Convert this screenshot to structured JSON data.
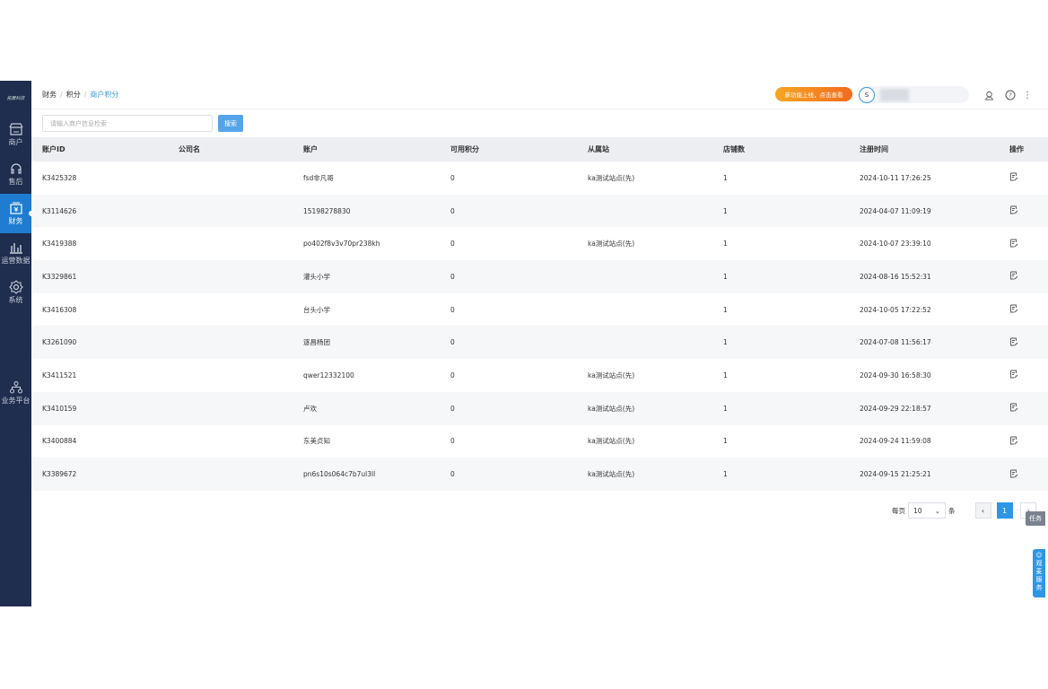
{
  "logo_text": "拓展科技",
  "sidebar": {
    "items": [
      {
        "label": "商户",
        "icon": "store-icon"
      },
      {
        "label": "售后",
        "icon": "headset-icon"
      },
      {
        "label": "财务",
        "icon": "finance-icon",
        "active": true
      },
      {
        "label": "运营数据",
        "icon": "bar-chart-icon"
      },
      {
        "label": "系统",
        "icon": "gear-icon"
      },
      {
        "label": "业务平台",
        "icon": "sitemap-icon"
      }
    ]
  },
  "breadcrumb": [
    "财务",
    "积分",
    "商户积分"
  ],
  "header": {
    "promo": "新功能上线，点击查看",
    "avatar_letter": "S"
  },
  "search": {
    "placeholder": "请输入商户信息检索",
    "value": "",
    "button": "搜索"
  },
  "table": {
    "columns": [
      "账户ID",
      "公司名",
      "账户",
      "可用积分",
      "从属站",
      "店铺数",
      "注册时间",
      "操作"
    ],
    "rows": [
      [
        "K3425328",
        "",
        "fsd非凡哥",
        "0",
        "ka测试站点(先)",
        "1",
        "2024-10-11 17:26:25"
      ],
      [
        "K3114626",
        "",
        "15198278830",
        "0",
        "",
        "1",
        "2024-04-07 11:09:19"
      ],
      [
        "K3419388",
        "",
        "po402f8v3v70pr238kh",
        "0",
        "ka测试站点(先)",
        "1",
        "2024-10-07 23:39:10"
      ],
      [
        "K3329861",
        "",
        "灌头小学",
        "0",
        "",
        "1",
        "2024-08-16 15:52:31"
      ],
      [
        "K3416308",
        "",
        "台头小学",
        "0",
        "",
        "1",
        "2024-10-05 17:22:52"
      ],
      [
        "K3261090",
        "",
        "逐昌杨团",
        "0",
        "",
        "1",
        "2024-07-08 11:56:17"
      ],
      [
        "K3411521",
        "",
        "qwer12332100",
        "0",
        "ka测试站点(先)",
        "1",
        "2024-09-30 16:58:30"
      ],
      [
        "K3410159",
        "",
        "卢欢",
        "0",
        "ka测试站点(先)",
        "1",
        "2024-09-29 22:18:57"
      ],
      [
        "K3400884",
        "",
        "东美贞知",
        "0",
        "ka测试站点(先)",
        "1",
        "2024-09-24 11:59:08"
      ],
      [
        "K3389672",
        "",
        "pn6s10s064c7b7ul3ll",
        "0",
        "ka测试站点(先)",
        "1",
        "2024-09-15 21:25:21"
      ]
    ]
  },
  "pagination": {
    "per_page_label": "每页",
    "page_size": "10",
    "unit": "条",
    "current_page": "1",
    "prev": "‹",
    "next": "›",
    "ellipsis": "···"
  },
  "float": {
    "task": "任务",
    "service": [
      "☺",
      "观",
      "麦",
      "服",
      "务"
    ]
  }
}
